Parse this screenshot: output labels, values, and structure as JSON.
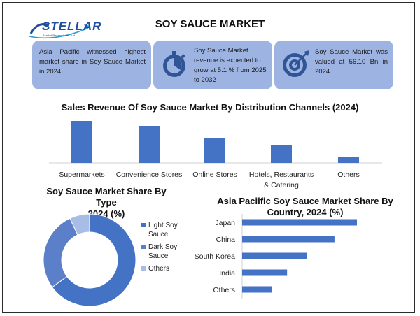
{
  "header": {
    "logo_text": "STELLAR",
    "logo_subtext": "Market Research Pvt. Ltd.",
    "title": "SOY SAUCE MARKET"
  },
  "cards": [
    {
      "text": "Asia Pacific witnessed highest market share in Soy Sauce Market in 2024",
      "icon": ""
    },
    {
      "text": "Soy Sauce Market revenue is expected to grow at 5.1 % from 2025 to 2032",
      "icon": "stopwatch-icon"
    },
    {
      "text": "Soy Sauce Market was valued at 56.10 Bn in 2024",
      "icon": "target-icon"
    }
  ],
  "colors": {
    "accent": "#4472c4",
    "card_bg": "#9db3e2",
    "donut_light": "#4472c4",
    "donut_dark": "#5b7fc9",
    "donut_others": "#a9bce6"
  },
  "chart_data": [
    {
      "type": "bar",
      "title": "Sales Revenue Of Soy Sauce Market By Distribution Channels (2024)",
      "categories": [
        "Supermarkets",
        "Convenience Stores",
        "Online Stores",
        "Hotels, Restaurants & Catering",
        "Others"
      ],
      "category_lines": [
        [
          "Supermarkets"
        ],
        [
          "Convenience Stores"
        ],
        [
          "Online Stores"
        ],
        [
          "Hotels, Restaurants",
          "& Catering"
        ],
        [
          "Others"
        ]
      ],
      "values": [
        60,
        53,
        36,
        26,
        8
      ],
      "ylim": [
        0,
        60
      ]
    },
    {
      "type": "pie",
      "title": "Soy Sauce Market Share By Type 2024 (%)",
      "title_lines": [
        "Soy Sauce Market Share By Type",
        "2024 (%)"
      ],
      "labels": [
        "Light Soy Sauce",
        "Dark Soy Sauce",
        "Others"
      ],
      "legend_lines": [
        [
          "Light Soy",
          "Sauce"
        ],
        [
          "Dark Soy",
          "Sauce"
        ],
        [
          "Others"
        ]
      ],
      "values": [
        65,
        28,
        7
      ]
    },
    {
      "type": "bar",
      "orientation": "horizontal",
      "title": "Asia Paciific Soy Sauce Market Share By Country, 2024 (%)",
      "title_lines": [
        "Asia Paciific Soy Sauce Market Share By",
        "Country, 2024 (%)"
      ],
      "categories": [
        "Japan",
        "China",
        "South Korea",
        "India",
        "Others"
      ],
      "values": [
        46,
        37,
        26,
        18,
        12
      ],
      "xlim": [
        0,
        46
      ]
    }
  ]
}
